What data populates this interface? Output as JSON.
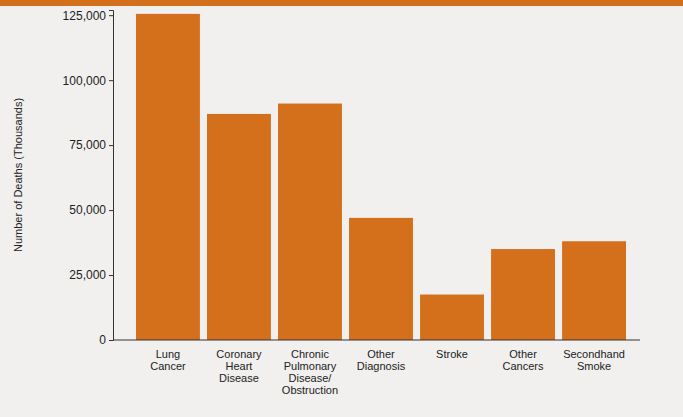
{
  "chart_data": {
    "type": "bar",
    "y_label": "Number of Deaths (Thousands)",
    "categories": [
      "Lung Cancer",
      "Coronary Heart Disease",
      "Chronic Pulmonary Disease/ Obstruction",
      "Other Diagnosis",
      "Stroke",
      "Other Cancers",
      "Secondhand Smoke"
    ],
    "values": [
      125500,
      87000,
      91000,
      47000,
      17500,
      35000,
      38000
    ],
    "color": "#d4701c",
    "ylim": [
      0,
      127000
    ],
    "yticks": [
      0,
      {
        "value": 25000,
        "label": "25,000"
      },
      {
        "value": 50000,
        "label": "50,000"
      },
      {
        "value": 75000,
        "label": "75,000"
      },
      {
        "value": 100000,
        "label": "100,000"
      },
      {
        "value": 125000,
        "label": "125,000"
      }
    ],
    "grid": false
  }
}
